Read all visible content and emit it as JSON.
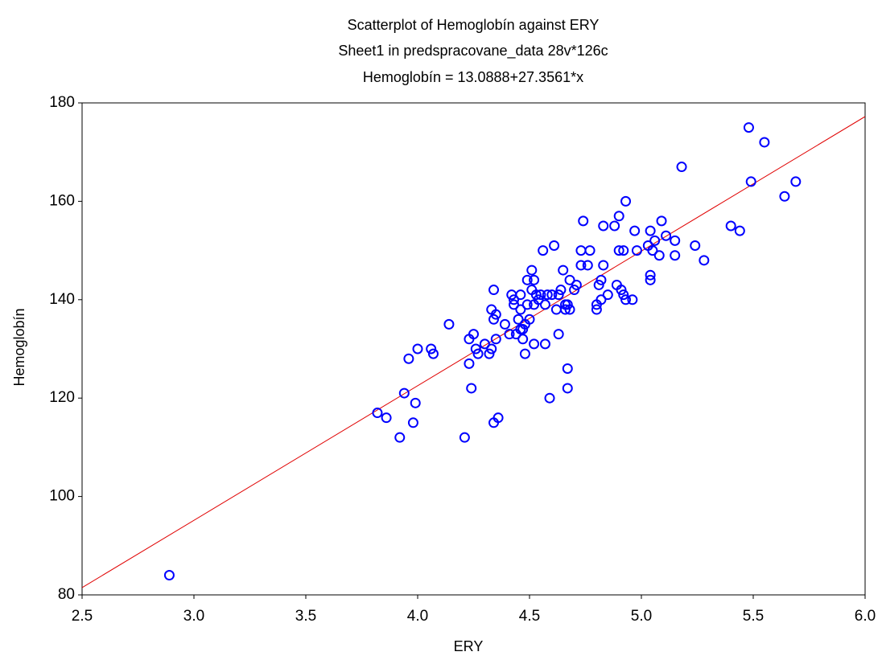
{
  "chart_data": {
    "type": "scatter",
    "title": "Scatterplot of Hemoglobín against ERY",
    "subtitle": "Sheet1 in predspracovane_data 28v*126c",
    "equation": "Hemoglobín = 13.0888+27.3561*x",
    "fit": {
      "intercept": 13.0888,
      "slope": 27.3561,
      "color": "#e00000"
    },
    "x_label": "ERY",
    "y_label": "Hemoglobín",
    "xlim": [
      2.5,
      6.0
    ],
    "xticks": [
      2.5,
      {
        "value": 3,
        "label": "3.0"
      },
      3.5,
      {
        "value": 4,
        "label": "4.0"
      },
      4.5,
      {
        "value": 5,
        "label": "5.0"
      },
      5.5,
      {
        "value": 6,
        "label": "6.0"
      }
    ],
    "ylim": [
      80,
      180
    ],
    "yticks": [
      80,
      100,
      120,
      140,
      160,
      180
    ],
    "grid": false,
    "series": [
      {
        "color": "#0000ff",
        "x": [
          2.89,
          3.82,
          3.86,
          3.92,
          3.94,
          3.96,
          3.98,
          3.99,
          4.0,
          4.06,
          4.07,
          4.14,
          4.21,
          4.23,
          4.23,
          4.24,
          4.25,
          4.26,
          4.27,
          4.3,
          4.32,
          4.33,
          4.33,
          4.34,
          4.34,
          4.34,
          4.35,
          4.35,
          4.36,
          4.39,
          4.41,
          4.42,
          4.43,
          4.43,
          4.44,
          4.45,
          4.46,
          4.46,
          4.46,
          4.47,
          4.47,
          4.48,
          4.48,
          4.49,
          4.49,
          4.5,
          4.51,
          4.51,
          4.52,
          4.52,
          4.52,
          4.53,
          4.54,
          4.55,
          4.56,
          4.57,
          4.57,
          4.58,
          4.59,
          4.6,
          4.61,
          4.62,
          4.63,
          4.63,
          4.64,
          4.65,
          4.66,
          4.66,
          4.67,
          4.67,
          4.67,
          4.68,
          4.68,
          4.7,
          4.71,
          4.73,
          4.73,
          4.74,
          4.76,
          4.77,
          4.8,
          4.8,
          4.81,
          4.82,
          4.82,
          4.83,
          4.83,
          4.85,
          4.88,
          4.89,
          4.9,
          4.9,
          4.91,
          4.92,
          4.92,
          4.93,
          4.93,
          4.96,
          4.97,
          4.98,
          5.03,
          5.04,
          5.04,
          5.04,
          5.05,
          5.06,
          5.08,
          5.09,
          5.11,
          5.15,
          5.15,
          5.18,
          5.24,
          5.28,
          5.4,
          5.44,
          5.48,
          5.49,
          5.55,
          5.64,
          5.69
        ],
        "values": [
          84,
          117,
          116,
          112,
          121,
          128,
          115,
          119,
          130,
          130,
          129,
          135,
          112,
          127,
          132,
          122,
          133,
          130,
          129,
          131,
          129,
          130,
          138,
          142,
          136,
          115,
          137,
          132,
          116,
          135,
          133,
          141,
          140,
          139,
          133,
          136,
          134,
          138,
          141,
          132,
          134,
          135,
          129,
          144,
          139,
          136,
          146,
          142,
          144,
          131,
          139,
          141,
          140,
          141,
          150,
          139,
          131,
          141,
          120,
          141,
          151,
          138,
          141,
          133,
          142,
          146,
          139,
          138,
          126,
          139,
          122,
          144,
          138,
          142,
          143,
          150,
          147,
          156,
          147,
          150,
          138,
          139,
          143,
          144,
          140,
          147,
          155,
          141,
          155,
          143,
          150,
          157,
          142,
          150,
          141,
          160,
          140,
          140,
          154,
          150,
          151,
          154,
          145,
          144,
          150,
          152,
          149,
          156,
          153,
          152,
          149,
          167,
          151,
          148,
          155,
          154,
          175,
          164,
          172,
          161,
          164
        ]
      }
    ]
  }
}
